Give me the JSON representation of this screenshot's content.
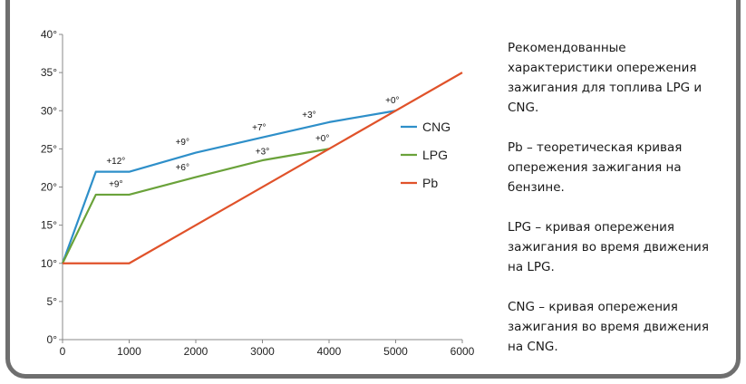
{
  "chart_data": {
    "type": "line",
    "xlim": [
      0,
      6000
    ],
    "ylim": [
      0,
      40
    ],
    "x_ticks": [
      "0",
      "1000",
      "2000",
      "3000",
      "4000",
      "5000",
      "6000"
    ],
    "y_ticks": [
      "0°",
      "5°",
      "10°",
      "15°",
      "20°",
      "25°",
      "30°",
      "35°",
      "40°"
    ],
    "grid": false,
    "legend_position": "right",
    "series": [
      {
        "name": "CNG",
        "color": "#2e8fc9",
        "points": [
          [
            0,
            10
          ],
          [
            500,
            22
          ],
          [
            1000,
            22
          ],
          [
            2000,
            24.5
          ],
          [
            3000,
            26.5
          ],
          [
            4000,
            28.5
          ],
          [
            5000,
            30
          ]
        ]
      },
      {
        "name": "LPG",
        "color": "#6aa23a",
        "points": [
          [
            0,
            10
          ],
          [
            500,
            19
          ],
          [
            1000,
            19
          ],
          [
            2000,
            21.3
          ],
          [
            3000,
            23.5
          ],
          [
            4000,
            25
          ]
        ]
      },
      {
        "name": "Pb",
        "color": "#e0522a",
        "points": [
          [
            0,
            10
          ],
          [
            1000,
            10
          ],
          [
            6000,
            35
          ]
        ]
      }
    ],
    "annotations": [
      {
        "text": "+12°",
        "x": 800,
        "y": 23
      },
      {
        "text": "+9°",
        "x": 1800,
        "y": 25.5
      },
      {
        "text": "+7°",
        "x": 2950,
        "y": 27.4
      },
      {
        "text": "+3°",
        "x": 3700,
        "y": 29.1
      },
      {
        "text": "+0°",
        "x": 4950,
        "y": 31
      },
      {
        "text": "+9°",
        "x": 800,
        "y": 20
      },
      {
        "text": "+6°",
        "x": 1800,
        "y": 22.2
      },
      {
        "text": "+3°",
        "x": 3000,
        "y": 24.3
      },
      {
        "text": "+0°",
        "x": 3900,
        "y": 26
      }
    ]
  },
  "notes": [
    "Рекомендованные характеристики опережения зажигания для топлива LPG и CNG.",
    "Pb – теоретическая кривая опережения зажигания на бензине.",
    "LPG – кривая опережения зажигания во время движения на LPG.",
    "CNG – кривая опережения зажигания во время движения на CNG."
  ]
}
